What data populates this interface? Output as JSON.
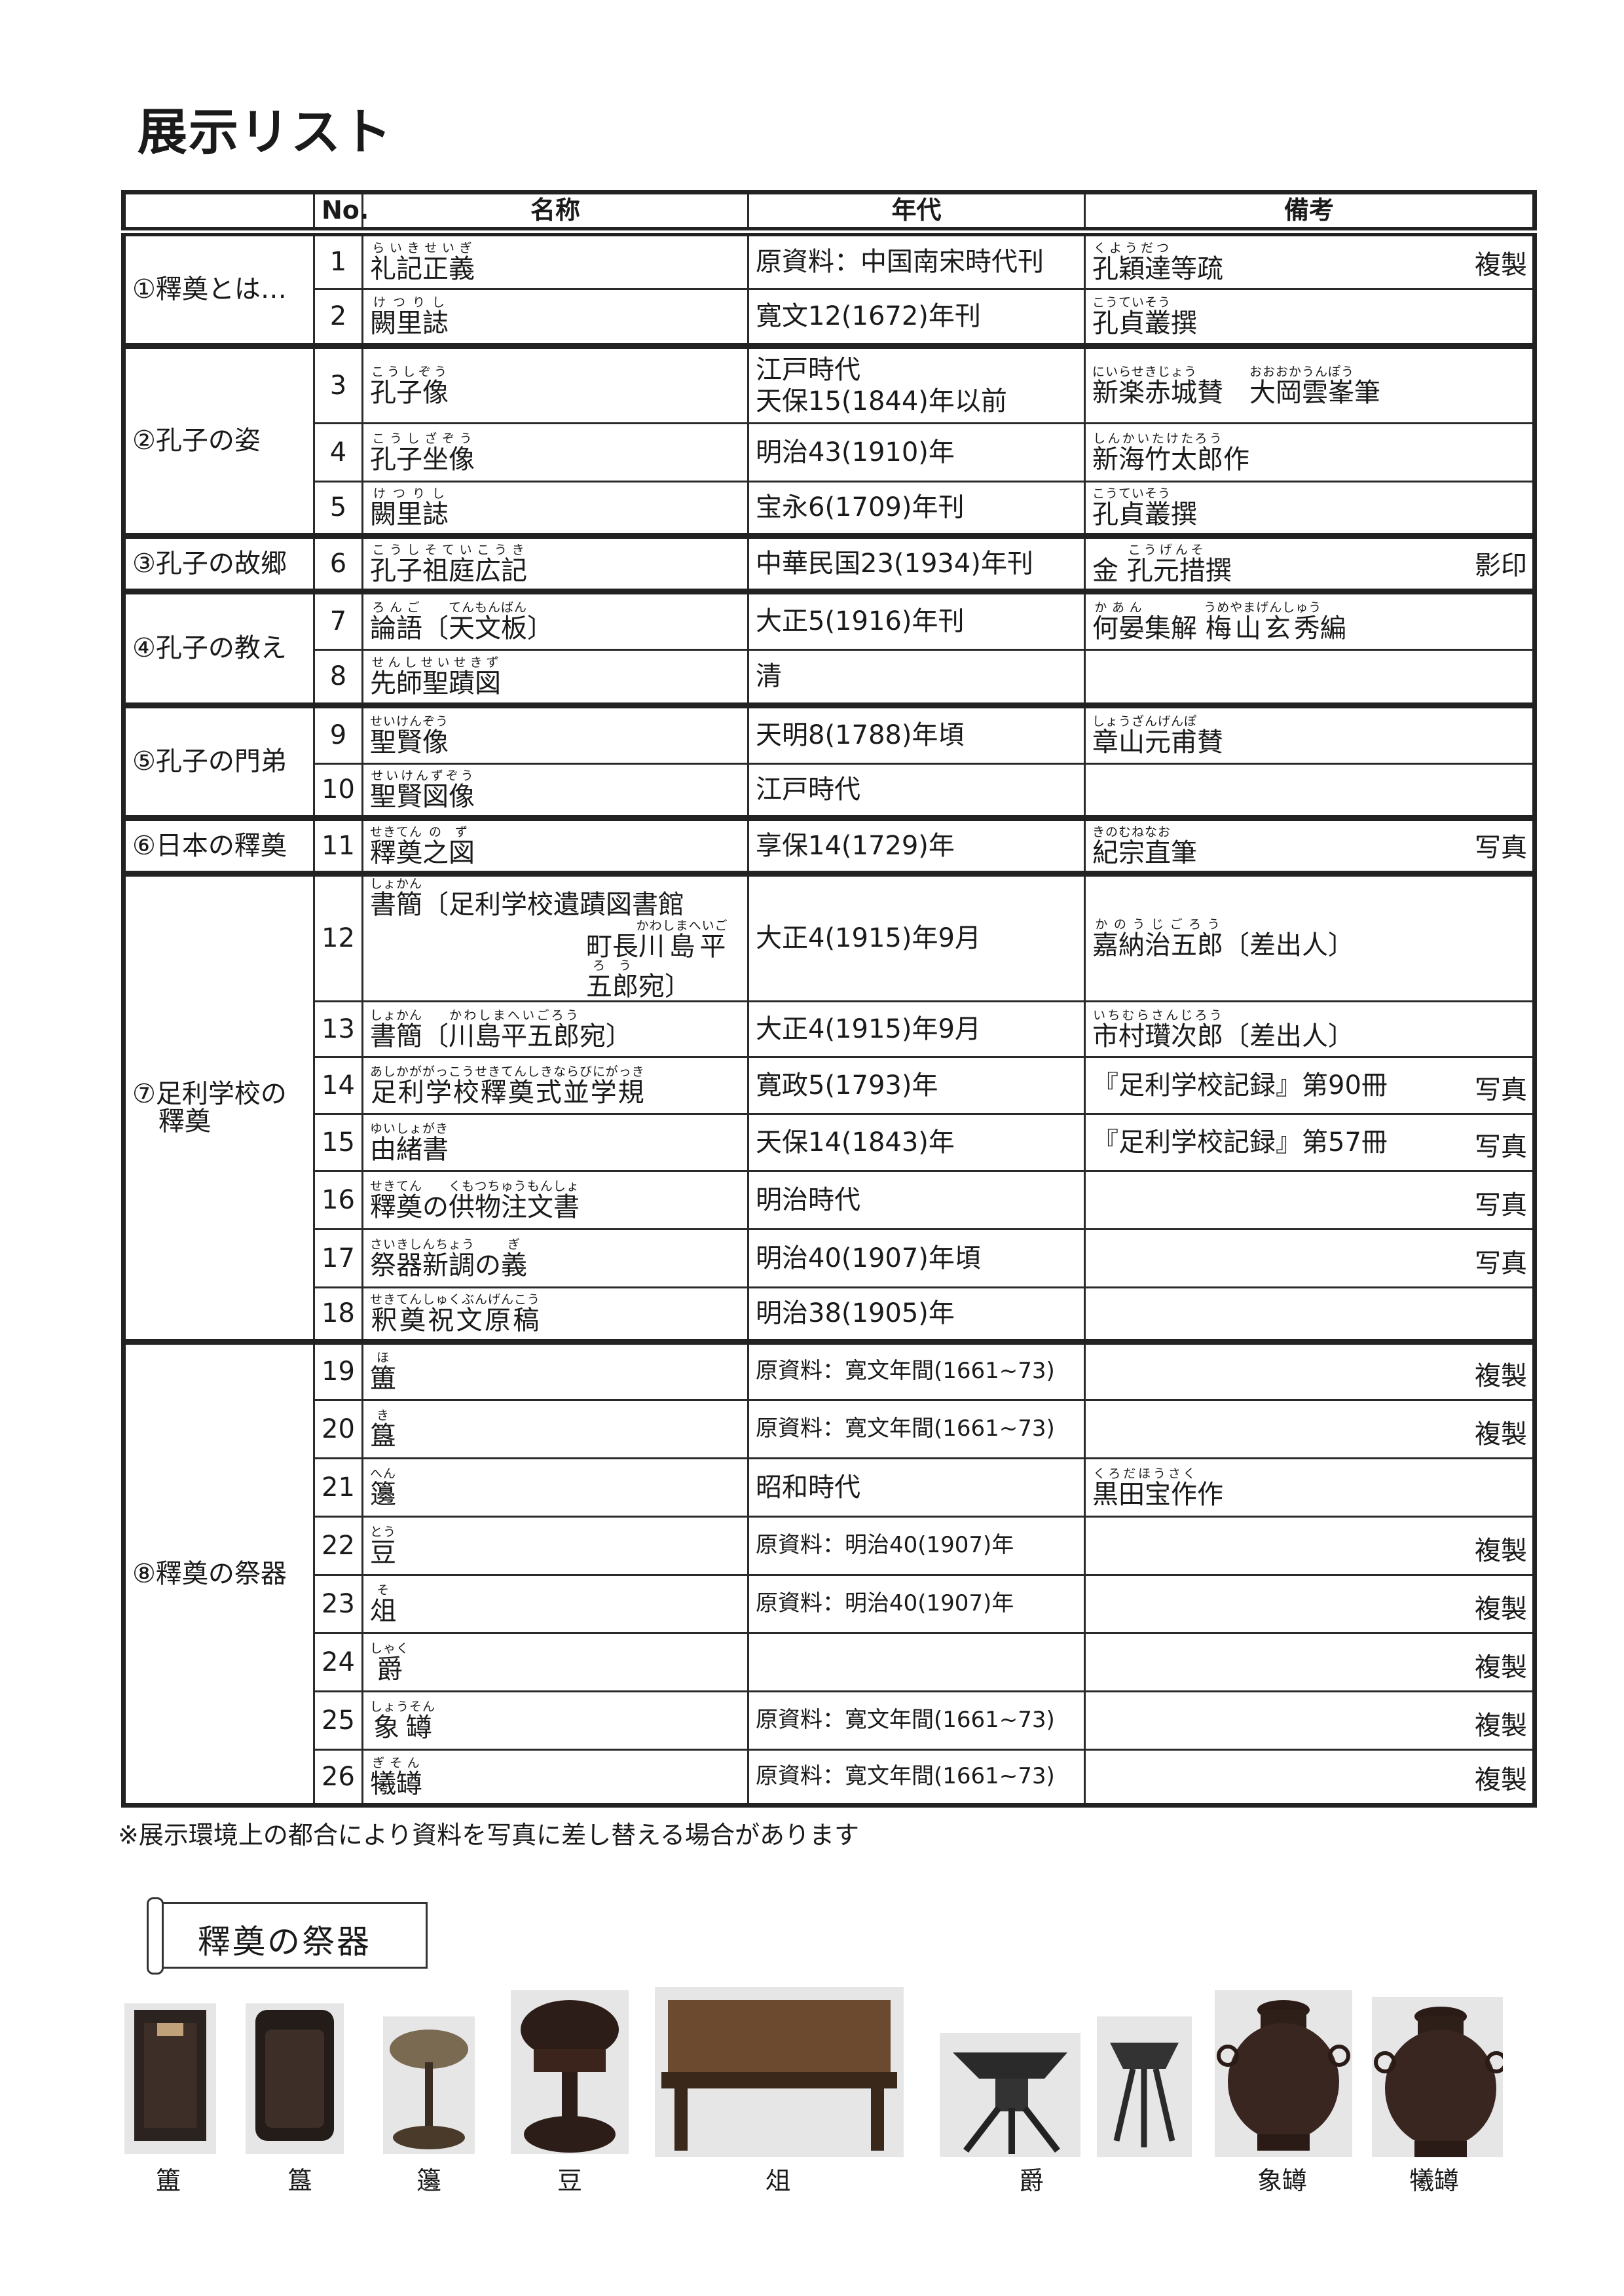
{
  "title": "展示リスト",
  "table": {
    "headers": [
      "",
      "No.",
      "名称",
      "年代",
      "備考"
    ],
    "sections": [
      {
        "label": "①釋奠とは…",
        "rows": [
          {
            "no": "1",
            "name": [
              [
                [
                  "礼記正義",
                  "らいきせいぎ"
                ]
              ]
            ],
            "year": [
              "原資料：中国南宋時代刊"
            ],
            "remark": [
              [
                "孔穎達",
                "くようだつ"
              ],
              [
                "等疏",
                ""
              ]
            ],
            "tag": "複製"
          },
          {
            "no": "2",
            "name": [
              [
                [
                  "闕里誌",
                  "けつりし"
                ]
              ]
            ],
            "year": [
              "寛文12(1672)年刊"
            ],
            "remark": [
              [
                "孔貞叢",
                "こうていそう"
              ],
              [
                "撰",
                ""
              ]
            ],
            "tag": ""
          }
        ]
      },
      {
        "label": "②孔子の姿",
        "rows": [
          {
            "no": "3",
            "name": [
              [
                [
                  "孔子像",
                  "こうしぞう"
                ]
              ]
            ],
            "year": [
              "江戸時代",
              "天保15(1844)年以前"
            ],
            "remark": [
              [
                "新楽赤城",
                "にいらせきじょう"
              ],
              [
                "賛　",
                ""
              ],
              [
                "大岡雲峯",
                "おおおかうんぽう"
              ],
              [
                "筆",
                ""
              ]
            ],
            "tag": ""
          },
          {
            "no": "4",
            "name": [
              [
                [
                  "孔子坐像",
                  "こうしざぞう"
                ]
              ]
            ],
            "year": [
              "明治43(1910)年"
            ],
            "remark": [
              [
                "新海竹太郎",
                "しんかいたけたろう"
              ],
              [
                "作",
                ""
              ]
            ],
            "tag": ""
          },
          {
            "no": "5",
            "name": [
              [
                [
                  "闕里誌",
                  "けつりし"
                ]
              ]
            ],
            "year": [
              "宝永6(1709)年刊"
            ],
            "remark": [
              [
                "孔貞叢",
                "こうていそう"
              ],
              [
                "撰",
                ""
              ]
            ],
            "tag": ""
          }
        ]
      },
      {
        "label": "③孔子の故郷",
        "rows": [
          {
            "no": "6",
            "name": [
              [
                [
                  "孔子祖庭広記",
                  "こうしそていこうき"
                ]
              ]
            ],
            "year": [
              "中華民国23(1934)年刊"
            ],
            "remark": [
              [
                "金 ",
                ""
              ],
              [
                "孔元措",
                "こうげんそ"
              ],
              [
                "撰",
                ""
              ]
            ],
            "tag": "影印"
          }
        ]
      },
      {
        "label": "④孔子の教え",
        "rows": [
          {
            "no": "7",
            "name": [
              [
                [
                  "論語",
                  "ろんご"
                ],
                [
                  "〔",
                  ""
                ],
                [
                  "天文板",
                  "てんもんばん"
                ],
                [
                  "〕",
                  ""
                ]
              ]
            ],
            "year": [
              "大正5(1916)年刊"
            ],
            "remark": [
              [
                "何晏",
                "かあん"
              ],
              [
                "集解 ",
                ""
              ],
              [
                "梅山玄秀",
                "うめやまげんしゅう"
              ],
              [
                "編",
                ""
              ]
            ],
            "tag": ""
          },
          {
            "no": "8",
            "name": [
              [
                [
                  "先師聖蹟図",
                  "せんしせいせきず"
                ]
              ]
            ],
            "year": [
              "清"
            ],
            "remark": [],
            "tag": ""
          }
        ]
      },
      {
        "label": "⑤孔子の門弟",
        "rows": [
          {
            "no": "9",
            "name": [
              [
                [
                  "聖賢像",
                  "せいけんぞう"
                ]
              ]
            ],
            "year": [
              "天明8(1788)年頃"
            ],
            "remark": [
              [
                "章山元甫",
                "しょうざんげんぽ"
              ],
              [
                "賛",
                ""
              ]
            ],
            "tag": ""
          },
          {
            "no": "10",
            "name": [
              [
                [
                  "聖賢図像",
                  "せいけんずぞう"
                ]
              ]
            ],
            "year": [
              "江戸時代"
            ],
            "remark": [],
            "tag": ""
          }
        ]
      },
      {
        "label": "⑥日本の釋奠",
        "rows": [
          {
            "no": "11",
            "name": [
              [
                [
                  "釋奠",
                  "せきてん"
                ],
                [
                  "之",
                  "の"
                ],
                [
                  "図",
                  "ず"
                ]
              ]
            ],
            "year": [
              "享保14(1729)年"
            ],
            "remark": [
              [
                "紀宗直",
                "きのむねなお"
              ],
              [
                "筆",
                ""
              ]
            ],
            "tag": "写真"
          }
        ]
      },
      {
        "label": "⑦足利学校の釋奠",
        "rows": [
          {
            "no": "12",
            "name": [
              [
                [
                  "書簡",
                  "しょかん"
                ],
                [
                  "〔足利学校遺蹟図書館",
                  ""
                ]
              ],
              [
                [
                  "町長",
                  ""
                ],
                [
                  "川島平五郎",
                  "かわしまへいごろう"
                ],
                [
                  "宛〕",
                  ""
                ]
              ]
            ],
            "year": [
              "大正4(1915)年9月"
            ],
            "remark": [
              [
                "嘉納治五郎",
                "かのうじごろう"
              ],
              [
                "〔差出人〕",
                ""
              ]
            ],
            "tag": ""
          },
          {
            "no": "13",
            "name": [
              [
                [
                  "書簡",
                  "しょかん"
                ],
                [
                  "〔",
                  ""
                ],
                [
                  "川島平五郎",
                  "かわしまへいごろう"
                ],
                [
                  "宛〕",
                  ""
                ]
              ]
            ],
            "year": [
              "大正4(1915)年9月"
            ],
            "remark": [
              [
                "市村瓚次郎",
                "いちむらさんじろう"
              ],
              [
                "〔差出人〕",
                ""
              ]
            ],
            "tag": ""
          },
          {
            "no": "14",
            "name": [
              [
                [
                  "足利学校釋奠式並学規",
                  "あしかががっこうせきてんしきならびにがっき"
                ]
              ]
            ],
            "year": [
              "寛政5(1793)年"
            ],
            "remark": [
              [
                "『足利学校記録』第90冊",
                ""
              ]
            ],
            "tag": "写真"
          },
          {
            "no": "15",
            "name": [
              [
                [
                  "由緒書",
                  "ゆいしょがき"
                ]
              ]
            ],
            "year": [
              "天保14(1843)年"
            ],
            "remark": [
              [
                "『足利学校記録』第57冊",
                ""
              ]
            ],
            "tag": "写真"
          },
          {
            "no": "16",
            "name": [
              [
                [
                  "釋奠",
                  "せきてん"
                ],
                [
                  "の",
                  ""
                ],
                [
                  "供物注文書",
                  "くもつちゅうもんしょ"
                ]
              ]
            ],
            "year": [
              "明治時代"
            ],
            "remark": [],
            "tag": "写真"
          },
          {
            "no": "17",
            "name": [
              [
                [
                  "祭器新調",
                  "さいきしんちょう"
                ],
                [
                  "の",
                  ""
                ],
                [
                  "義",
                  "ぎ"
                ]
              ]
            ],
            "year": [
              "明治40(1907)年頃"
            ],
            "remark": [],
            "tag": "写真"
          },
          {
            "no": "18",
            "name": [
              [
                [
                  "釈奠祝文原稿",
                  "せきてんしゅくぶんげんこう"
                ]
              ]
            ],
            "year": [
              "明治38(1905)年"
            ],
            "remark": [],
            "tag": ""
          }
        ]
      },
      {
        "label": "⑧釋奠の祭器",
        "rows": [
          {
            "no": "19",
            "name": [
              [
                [
                  "簠",
                  "ほ"
                ]
              ]
            ],
            "year": [
              "原資料：寛文年間(1661~73)"
            ],
            "remark": [],
            "tag": "複製"
          },
          {
            "no": "20",
            "name": [
              [
                [
                  "簋",
                  "き"
                ]
              ]
            ],
            "year": [
              "原資料：寛文年間(1661~73)"
            ],
            "remark": [],
            "tag": "複製"
          },
          {
            "no": "21",
            "name": [
              [
                [
                  "籩",
                  "へん"
                ]
              ]
            ],
            "year": [
              "昭和時代"
            ],
            "remark": [
              [
                "黒田宝作",
                "くろだほうさく"
              ],
              [
                "作",
                ""
              ]
            ],
            "tag": ""
          },
          {
            "no": "22",
            "name": [
              [
                [
                  "豆",
                  "とう"
                ]
              ]
            ],
            "year": [
              "原資料：明治40(1907)年"
            ],
            "remark": [],
            "tag": "複製"
          },
          {
            "no": "23",
            "name": [
              [
                [
                  "俎",
                  "そ"
                ]
              ]
            ],
            "year": [
              "原資料：明治40(1907)年"
            ],
            "remark": [],
            "tag": "複製"
          },
          {
            "no": "24",
            "name": [
              [
                [
                  "爵",
                  "しゃく"
                ]
              ]
            ],
            "year": [],
            "remark": [],
            "tag": "複製"
          },
          {
            "no": "25",
            "name": [
              [
                [
                  "象罇",
                  "しょうそん"
                ]
              ]
            ],
            "year": [
              "原資料：寛文年間(1661~73)"
            ],
            "remark": [],
            "tag": "複製"
          },
          {
            "no": "26",
            "name": [
              [
                [
                  "犧罇",
                  "ぎそん"
                ]
              ]
            ],
            "year": [
              "原資料：寛文年間(1661~73)"
            ],
            "remark": [],
            "tag": "複製"
          }
        ]
      }
    ]
  },
  "note": "※展示環境上の都合により資料を写真に差し替える場合があります",
  "gallery": {
    "heading": "釋奠の祭器",
    "items": [
      {
        "label": "簠",
        "shape": "box"
      },
      {
        "label": "簋",
        "shape": "box-round"
      },
      {
        "label": "籩",
        "shape": "stand-basket"
      },
      {
        "label": "豆",
        "shape": "stand-lid"
      },
      {
        "label": "俎",
        "shape": "table"
      },
      {
        "label": "爵",
        "shape": "tripod"
      },
      {
        "label": "",
        "shape": "tripod-small"
      },
      {
        "label": "象罇",
        "shape": "jar"
      },
      {
        "label": "犧罇",
        "shape": "jar"
      }
    ]
  }
}
